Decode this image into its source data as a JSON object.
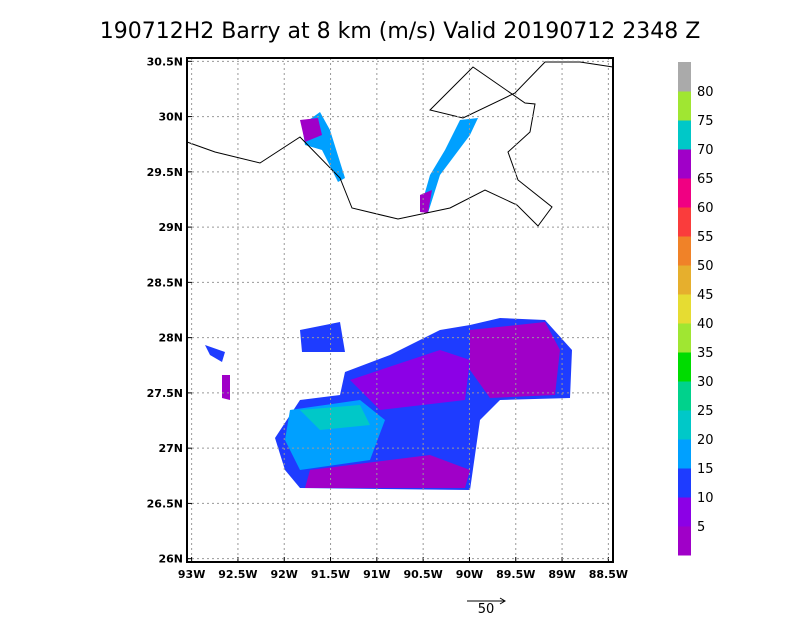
{
  "title": "190712H2  Barry at 8 km (m/s) Valid 20190712  2348 Z",
  "map": {
    "xlim": [
      -93.05,
      -88.45
    ],
    "ylim": [
      25.97,
      30.53
    ],
    "xticks": [
      {
        "value": -93,
        "label": "93W"
      },
      {
        "value": -92.5,
        "label": "92.5W"
      },
      {
        "value": -92,
        "label": "92W"
      },
      {
        "value": -91.5,
        "label": "91.5W"
      },
      {
        "value": -91,
        "label": "91W"
      },
      {
        "value": -90.5,
        "label": "90.5W"
      },
      {
        "value": -90,
        "label": "90W"
      },
      {
        "value": -89.5,
        "label": "89.5W"
      },
      {
        "value": -89,
        "label": "89W"
      },
      {
        "value": -88.5,
        "label": "88.5W"
      }
    ],
    "yticks": [
      {
        "value": 26,
        "label": "26N"
      },
      {
        "value": 26.5,
        "label": "26.5N"
      },
      {
        "value": 27,
        "label": "27N"
      },
      {
        "value": 27.5,
        "label": "27.5N"
      },
      {
        "value": 28,
        "label": "28N"
      },
      {
        "value": 28.5,
        "label": "28.5N"
      },
      {
        "value": 29,
        "label": "29N"
      },
      {
        "value": 29.5,
        "label": "29.5N"
      },
      {
        "value": 30,
        "label": "30N"
      },
      {
        "value": 30.5,
        "label": "30.5N"
      }
    ],
    "grid": true
  },
  "colorbar": {
    "levels": [
      5,
      10,
      15,
      20,
      25,
      30,
      35,
      40,
      45,
      50,
      55,
      60,
      65,
      70,
      75,
      80
    ],
    "colors": [
      "#a000c8",
      "#8c00e6",
      "#1e3cff",
      "#00a0ff",
      "#00c8c8",
      "#00d28c",
      "#00dc00",
      "#a0e632",
      "#e6dc32",
      "#e6af2d",
      "#f08228",
      "#fa3c3c",
      "#f00082",
      "#a000c8",
      "#00c8c8",
      "#a0e632",
      "#aaaaaa"
    ]
  },
  "reference_vector": 50
}
